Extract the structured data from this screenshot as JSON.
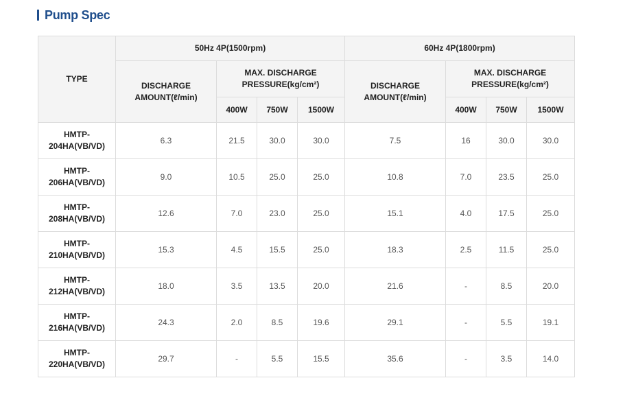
{
  "title": "Pump Spec",
  "header": {
    "type_label": "TYPE",
    "groups": [
      "50Hz 4P(1500rpm)",
      "60Hz 4P(1800rpm)"
    ],
    "discharge_line1": "DISCHARGE",
    "discharge_line2": "AMOUNT(ℓ/min)",
    "pressure_line1": "MAX. DISCHARGE",
    "pressure_line2": "PRESSURE(kg/cm²)",
    "powers": [
      "400W",
      "750W",
      "1500W"
    ]
  },
  "rows": [
    {
      "type1": "HMTP-",
      "type2": "204HA(VB/VD)",
      "cells": [
        "6.3",
        "21.5",
        "30.0",
        "30.0",
        "7.5",
        "16",
        "30.0",
        "30.0"
      ]
    },
    {
      "type1": "HMTP-",
      "type2": "206HA(VB/VD)",
      "cells": [
        "9.0",
        "10.5",
        "25.0",
        "25.0",
        "10.8",
        "7.0",
        "23.5",
        "25.0"
      ]
    },
    {
      "type1": "HMTP-",
      "type2": "208HA(VB/VD)",
      "cells": [
        "12.6",
        "7.0",
        "23.0",
        "25.0",
        "15.1",
        "4.0",
        "17.5",
        "25.0"
      ]
    },
    {
      "type1": "HMTP-",
      "type2": "210HA(VB/VD)",
      "cells": [
        "15.3",
        "4.5",
        "15.5",
        "25.0",
        "18.3",
        "2.5",
        "11.5",
        "25.0"
      ]
    },
    {
      "type1": "HMTP-",
      "type2": "212HA(VB/VD)",
      "cells": [
        "18.0",
        "3.5",
        "13.5",
        "20.0",
        "21.6",
        "-",
        "8.5",
        "20.0"
      ]
    },
    {
      "type1": "HMTP-",
      "type2": "216HA(VB/VD)",
      "cells": [
        "24.3",
        "2.0",
        "8.5",
        "19.6",
        "29.1",
        "-",
        "5.5",
        "19.1"
      ]
    },
    {
      "type1": "HMTP-",
      "type2": "220HA(VB/VD)",
      "cells": [
        "29.7",
        "-",
        "5.5",
        "15.5",
        "35.6",
        "-",
        "3.5",
        "14.0"
      ]
    }
  ],
  "colors": {
    "title": "#1f4e8c",
    "header_bg": "#f4f4f4",
    "border": "#dcdcdc"
  }
}
